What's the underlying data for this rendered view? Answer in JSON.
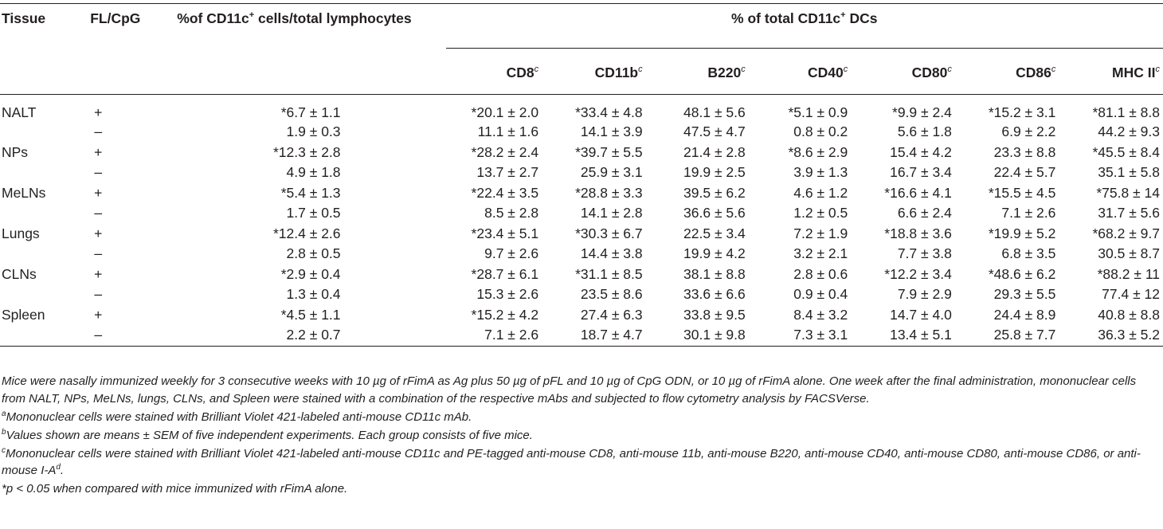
{
  "table": {
    "headers": {
      "tissue": "Tissue",
      "fl_cpg": "FL/CpG",
      "pct_cd11c_pre": "%of CD11c",
      "pct_cd11c_sup": "+",
      "pct_cd11c_post": " cells/total lymphocytes",
      "total_dc_pre": "% of total CD11c",
      "total_dc_sup": "+",
      "total_dc_post": " DCs",
      "markers": [
        {
          "label": "CD8",
          "sup": "c"
        },
        {
          "label": "CD11b",
          "sup": "c"
        },
        {
          "label": "B220",
          "sup": "c"
        },
        {
          "label": "CD40",
          "sup": "c"
        },
        {
          "label": "CD80",
          "sup": "c"
        },
        {
          "label": "CD86",
          "sup": "c"
        },
        {
          "label": "MHC II",
          "sup": "c"
        }
      ]
    },
    "rows": [
      {
        "tissue": "NALT",
        "fl": "+",
        "pct": "*6.7 ± 1.1",
        "cd8": "*20.1 ± 2.0",
        "cd11b": "*33.4 ± 4.8",
        "b220": "48.1 ± 5.6",
        "cd40": "*5.1 ± 0.9",
        "cd80": "*9.9 ± 2.4",
        "cd86": "*15.2 ± 3.1",
        "mhc": "*81.1 ± 8.8"
      },
      {
        "tissue": "",
        "fl": "–",
        "pct": "1.9 ± 0.3",
        "cd8": "11.1 ± 1.6",
        "cd11b": "14.1 ± 3.9",
        "b220": "47.5 ± 4.7",
        "cd40": "0.8 ± 0.2",
        "cd80": "5.6 ± 1.8",
        "cd86": "6.9 ± 2.2",
        "mhc": "44.2 ± 9.3"
      },
      {
        "tissue": "NPs",
        "fl": "+",
        "pct": "*12.3 ± 2.8",
        "cd8": "*28.2 ± 2.4",
        "cd11b": "*39.7 ± 5.5",
        "b220": "21.4 ± 2.8",
        "cd40": "*8.6 ± 2.9",
        "cd80": "15.4 ± 4.2",
        "cd86": "23.3 ± 8.8",
        "mhc": "*45.5 ± 8.4"
      },
      {
        "tissue": "",
        "fl": "–",
        "pct": "4.9 ± 1.8",
        "cd8": "13.7 ± 2.7",
        "cd11b": "25.9 ± 3.1",
        "b220": "19.9 ± 2.5",
        "cd40": "3.9 ± 1.3",
        "cd80": "16.7 ± 3.4",
        "cd86": "22.4 ± 5.7",
        "mhc": "35.1 ± 5.8"
      },
      {
        "tissue": "MeLNs",
        "fl": "+",
        "pct": "*5.4 ± 1.3",
        "cd8": "*22.4 ± 3.5",
        "cd11b": "*28.8 ± 3.3",
        "b220": "39.5 ± 6.2",
        "cd40": "4.6 ± 1.2",
        "cd80": "*16.6 ± 4.1",
        "cd86": "*15.5 ± 4.5",
        "mhc": "*75.8 ± 14"
      },
      {
        "tissue": "",
        "fl": "–",
        "pct": "1.7 ± 0.5",
        "cd8": "8.5 ± 2.8",
        "cd11b": "14.1 ± 2.8",
        "b220": "36.6 ± 5.6",
        "cd40": "1.2 ± 0.5",
        "cd80": "6.6 ± 2.4",
        "cd86": "7.1 ± 2.6",
        "mhc": "31.7 ± 5.6"
      },
      {
        "tissue": "Lungs",
        "fl": "+",
        "pct": "*12.4 ± 2.6",
        "cd8": "*23.4 ± 5.1",
        "cd11b": "*30.3 ± 6.7",
        "b220": "22.5 ± 3.4",
        "cd40": "7.2 ± 1.9",
        "cd80": "*18.8 ± 3.6",
        "cd86": "*19.9 ± 5.2",
        "mhc": "*68.2 ± 9.7"
      },
      {
        "tissue": "",
        "fl": "–",
        "pct": "2.8 ± 0.5",
        "cd8": "9.7 ± 2.6",
        "cd11b": "14.4 ± 3.8",
        "b220": "19.9 ± 4.2",
        "cd40": "3.2 ± 2.1",
        "cd80": "7.7 ± 3.8",
        "cd86": "6.8 ± 3.5",
        "mhc": "30.5 ± 8.7"
      },
      {
        "tissue": "CLNs",
        "fl": "+",
        "pct": "*2.9 ± 0.4",
        "cd8": "*28.7 ± 6.1",
        "cd11b": "*31.1 ± 8.5",
        "b220": "38.1 ± 8.8",
        "cd40": "2.8 ± 0.6",
        "cd80": "*12.2 ± 3.4",
        "cd86": "*48.6 ± 6.2",
        "mhc": "*88.2 ± 11"
      },
      {
        "tissue": "",
        "fl": "–",
        "pct": "1.3 ± 0.4",
        "cd8": "15.3 ± 2.6",
        "cd11b": "23.5 ± 8.6",
        "b220": "33.6 ± 6.6",
        "cd40": "0.9 ± 0.4",
        "cd80": "7.9 ± 2.9",
        "cd86": "29.3 ± 5.5",
        "mhc": "77.4 ± 12"
      },
      {
        "tissue": "Spleen",
        "fl": "+",
        "pct": "*4.5 ± 1.1",
        "cd8": "*15.2 ± 4.2",
        "cd11b": "27.4 ± 6.3",
        "b220": "33.8 ± 9.5",
        "cd40": "8.4 ± 3.2",
        "cd80": "14.7 ± 4.0",
        "cd86": "24.4 ± 8.9",
        "mhc": "40.8 ± 8.8"
      },
      {
        "tissue": "",
        "fl": "–",
        "pct": "2.2 ± 0.7",
        "cd8": "7.1 ± 2.6",
        "cd11b": "18.7 ± 4.7",
        "b220": "30.1 ± 9.8",
        "cd40": "7.3 ± 3.1",
        "cd80": "13.4 ± 5.1",
        "cd86": "25.8 ± 7.7",
        "mhc": "36.3 ± 5.2"
      }
    ]
  },
  "notes": {
    "main": "Mice were nasally immunized weekly for 3 consecutive weeks with 10 µg of rFimA as Ag plus 50 µg of pFL and 10 µg of CpG ODN, or 10 µg of rFimA alone. One week after the final administration, mononuclear cells from NALT, NPs, MeLNs, lungs, CLNs, and Spleen were stained with a combination of the respective mAbs and subjected to flow cytometry analysis by FACSVerse.",
    "a_mark": "a",
    "a": "Mononuclear cells were stained with Brilliant Violet 421-labeled anti-mouse CD11c mAb.",
    "b_mark": "b",
    "b": "Values shown are means ± SEM of five independent experiments. Each group consists of five mice.",
    "c_mark": "c",
    "c": "Mononuclear cells were stained with Brilliant Violet 421-labeled anti-mouse CD11c and PE-tagged anti-mouse CD8, anti-mouse 11b, anti-mouse B220, anti-mouse CD40, anti-mouse CD80, anti-mouse CD86, or anti-mouse I-A",
    "c_tail_sup": "d",
    "c_tail": ".",
    "star": "*p < 0.05 when compared with mice immunized with rFimA alone."
  }
}
